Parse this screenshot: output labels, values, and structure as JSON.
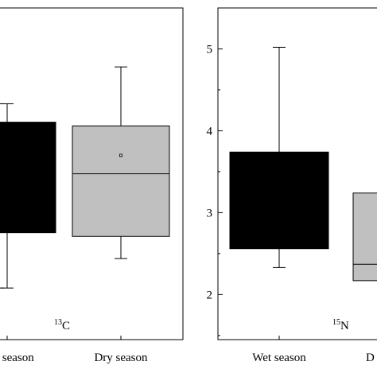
{
  "chart_data": [
    {
      "type": "box",
      "panel": "left",
      "annotation": {
        "sup": "13",
        "text": "C"
      },
      "categories": [
        "Wet season",
        "Dry season"
      ],
      "category_labels": [
        "Wet season",
        "Dry season"
      ],
      "boxes": [
        {
          "category": "Wet season",
          "fill": "#000000",
          "whisker_low": -24.8,
          "q1": -24.05,
          "median": null,
          "mean": null,
          "q3": -22.55,
          "whisker_high": -22.3
        },
        {
          "category": "Dry season",
          "fill": "#c0c0c0",
          "whisker_low": -24.4,
          "q1": -24.1,
          "median": -23.25,
          "mean": -23.0,
          "q3": -22.6,
          "whisker_high": -21.8
        }
      ],
      "ylim": [
        -25.5,
        -21.0
      ],
      "yticks": []
    },
    {
      "type": "box",
      "panel": "right",
      "annotation": {
        "sup": "15",
        "text": "N"
      },
      "categories": [
        "Wet season",
        "Dry season"
      ],
      "category_labels": [
        "Wet season",
        "D"
      ],
      "boxes": [
        {
          "category": "Wet season",
          "fill": "#000000",
          "whisker_low": 2.33,
          "q1": 2.56,
          "median": null,
          "mean": null,
          "q3": 3.74,
          "whisker_high": 5.02
        },
        {
          "category": "Dry season",
          "fill": "#c0c0c0",
          "whisker_low": null,
          "q1": 2.17,
          "median": 2.37,
          "mean": null,
          "q3": 3.24,
          "whisker_high": null
        }
      ],
      "ylim": [
        1.45,
        5.5
      ],
      "yticks": [
        "2",
        "3",
        "4",
        "5"
      ]
    }
  ]
}
